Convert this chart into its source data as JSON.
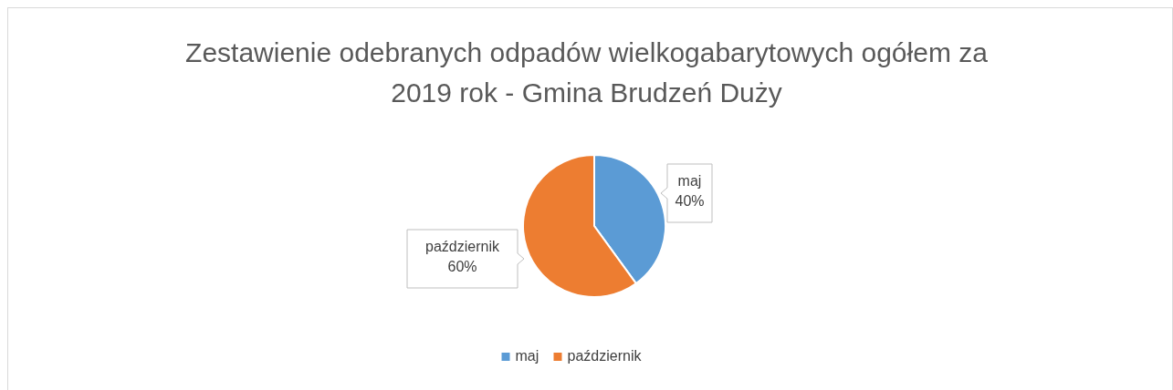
{
  "chart_data": {
    "type": "pie",
    "title": "Zestawienie odebranych odpadów wielkogabarytowych ogółem za 2019 rok - Gmina Brudzeń Duży",
    "categories": [
      "maj",
      "październik"
    ],
    "values": [
      40,
      60
    ],
    "colors": [
      "#5b9bd5",
      "#ed7d31"
    ],
    "value_labels": [
      "40%",
      "60%"
    ],
    "legend": "bottom"
  }
}
